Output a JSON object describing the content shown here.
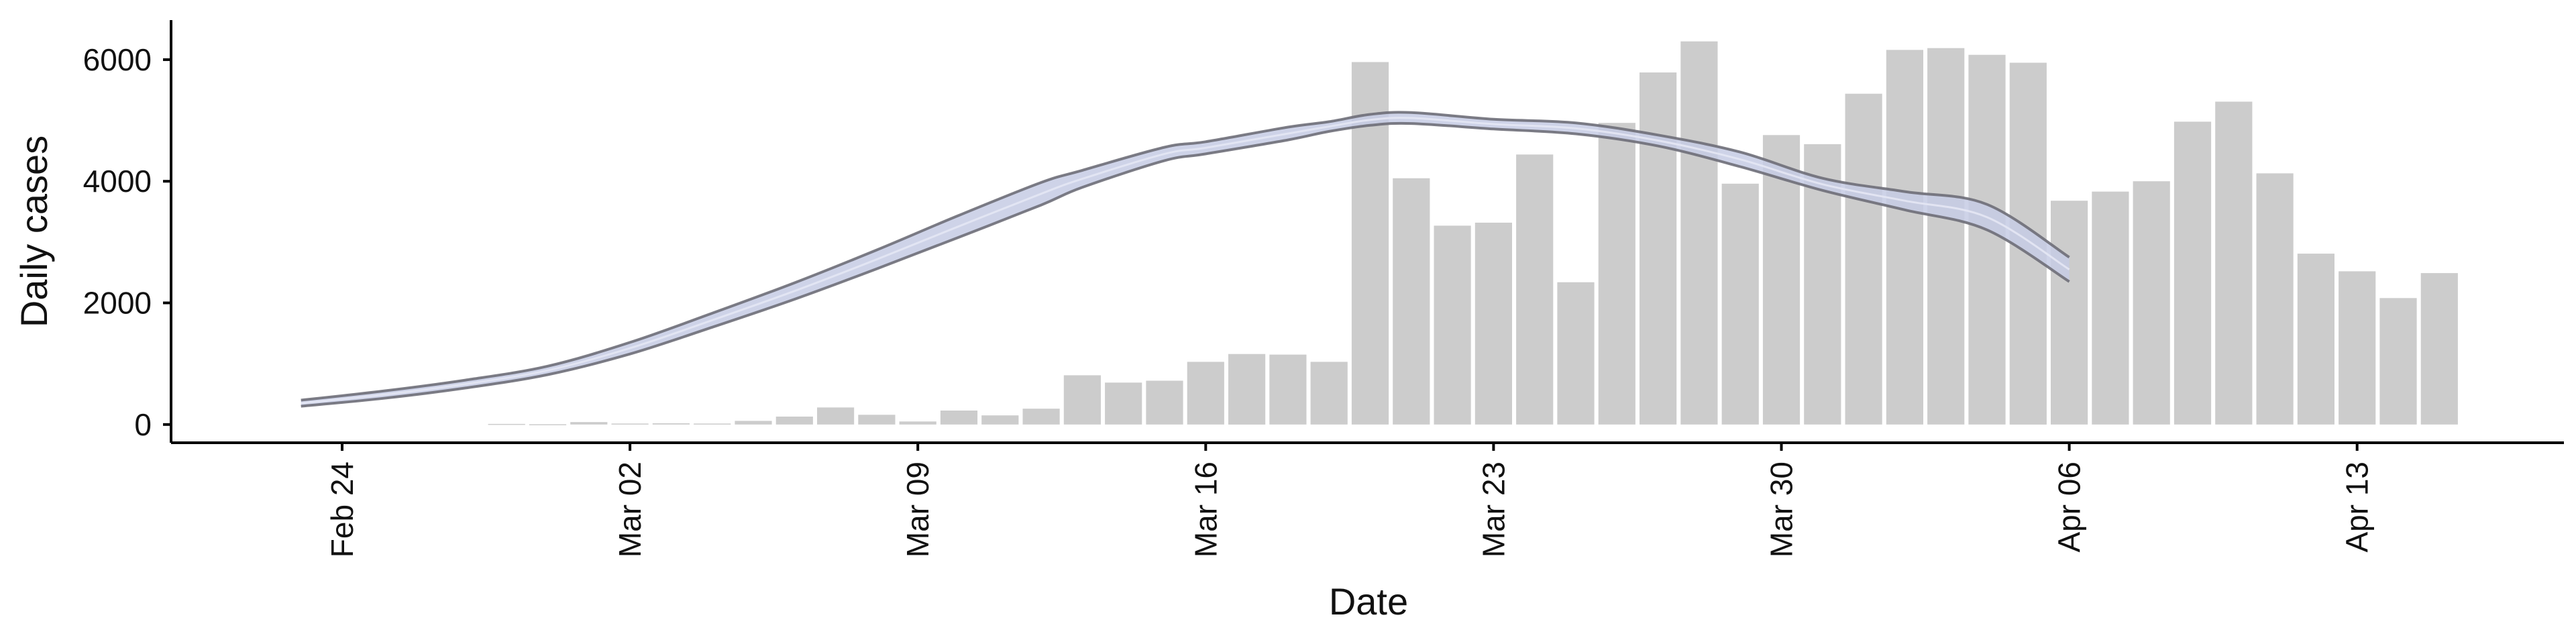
{
  "chart_data": {
    "type": "bar",
    "xlabel": "Date",
    "ylabel": "Daily cases",
    "ylim": [
      -300,
      6650
    ],
    "yticks": [
      0,
      2000,
      4000,
      6000
    ],
    "grid": false,
    "x_ticks": [
      {
        "date": "2020-02-24",
        "label": "Feb 24"
      },
      {
        "date": "2020-03-02",
        "label": "Mar 02"
      },
      {
        "date": "2020-03-09",
        "label": "Mar 09"
      },
      {
        "date": "2020-03-16",
        "label": "Mar 16"
      },
      {
        "date": "2020-03-23",
        "label": "Mar 23"
      },
      {
        "date": "2020-03-30",
        "label": "Mar 30"
      },
      {
        "date": "2020-04-06",
        "label": "Apr 06"
      },
      {
        "date": "2020-04-13",
        "label": "Apr 13"
      }
    ],
    "bars": {
      "color": "#cccccc",
      "dates": [
        "2020-02-28",
        "2020-02-29",
        "2020-03-01",
        "2020-03-02",
        "2020-03-03",
        "2020-03-04",
        "2020-03-05",
        "2020-03-06",
        "2020-03-07",
        "2020-03-08",
        "2020-03-09",
        "2020-03-10",
        "2020-03-11",
        "2020-03-12",
        "2020-03-13",
        "2020-03-14",
        "2020-03-15",
        "2020-03-16",
        "2020-03-17",
        "2020-03-18",
        "2020-03-19",
        "2020-03-20",
        "2020-03-21",
        "2020-03-22",
        "2020-03-23",
        "2020-03-24",
        "2020-03-25",
        "2020-03-26",
        "2020-03-27",
        "2020-03-28",
        "2020-03-29",
        "2020-03-30",
        "2020-03-31",
        "2020-04-01",
        "2020-04-02",
        "2020-04-03",
        "2020-04-04",
        "2020-04-05",
        "2020-04-06",
        "2020-04-07",
        "2020-04-08",
        "2020-04-09",
        "2020-04-10",
        "2020-04-11",
        "2020-04-12",
        "2020-04-13",
        "2020-04-14",
        "2020-04-15"
      ],
      "values": [
        10,
        5,
        40,
        15,
        20,
        15,
        60,
        130,
        280,
        160,
        50,
        230,
        150,
        260,
        810,
        690,
        720,
        1030,
        1160,
        1150,
        1030,
        5960,
        4050,
        3270,
        3320,
        4440,
        2340,
        4960,
        5790,
        6300,
        3960,
        4760,
        4610,
        5440,
        6160,
        6190,
        6080,
        5950,
        3680,
        3830,
        4000,
        4980,
        5310,
        4130,
        2810,
        2520,
        2080,
        2490
      ]
    },
    "bands": {
      "color": "#c6cbe4",
      "edge_color": "#6e6e78",
      "dates": [
        "2020-02-23",
        "2020-02-25",
        "2020-02-27",
        "2020-02-29",
        "2020-03-02",
        "2020-03-04",
        "2020-03-06",
        "2020-03-08",
        "2020-03-10",
        "2020-03-12",
        "2020-03-13",
        "2020-03-15",
        "2020-03-16",
        "2020-03-18",
        "2020-03-19",
        "2020-03-20",
        "2020-03-21",
        "2020-03-23",
        "2020-03-25",
        "2020-03-27",
        "2020-03-29",
        "2020-03-31",
        "2020-04-02",
        "2020-04-04",
        "2020-04-06"
      ],
      "lower": [
        300,
        430,
        600,
        820,
        1160,
        1600,
        2060,
        2560,
        3080,
        3610,
        3900,
        4340,
        4450,
        4680,
        4820,
        4920,
        4950,
        4860,
        4780,
        4580,
        4240,
        3850,
        3530,
        3200,
        2350
      ],
      "upper": [
        400,
        550,
        730,
        960,
        1350,
        1830,
        2330,
        2870,
        3440,
        3980,
        4180,
        4560,
        4650,
        4890,
        4980,
        5100,
        5130,
        5020,
        4960,
        4760,
        4480,
        4050,
        3830,
        3620,
        2750
      ]
    }
  }
}
